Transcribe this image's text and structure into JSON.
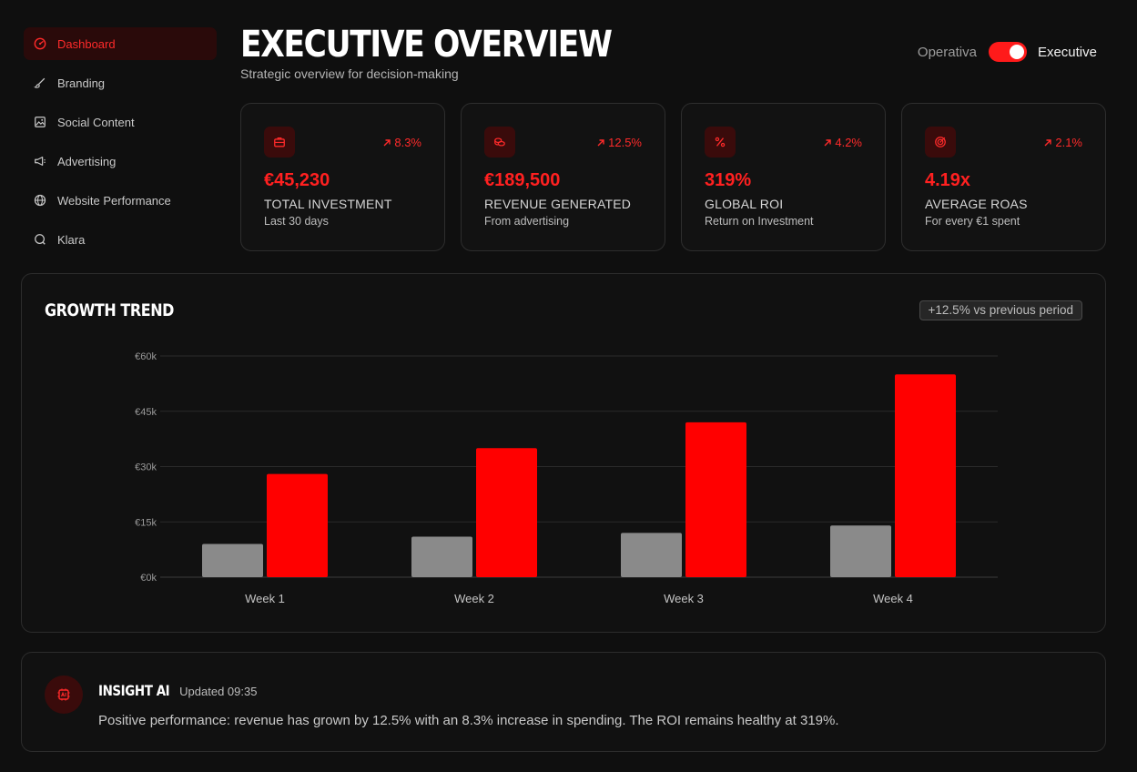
{
  "sidebar": {
    "items": [
      {
        "label": "Dashboard",
        "icon": "dashboard-icon",
        "active": true
      },
      {
        "label": "Branding",
        "icon": "brush-icon"
      },
      {
        "label": "Social Content",
        "icon": "image-icon"
      },
      {
        "label": "Advertising",
        "icon": "megaphone-icon"
      },
      {
        "label": "Website Performance",
        "icon": "globe-icon"
      },
      {
        "label": "Klara",
        "icon": "chat-icon"
      }
    ]
  },
  "header": {
    "title": "EXECUTIVE OVERVIEW",
    "subtitle": "Strategic overview for decision-making",
    "toggle": {
      "left_label": "Operativa",
      "right_label": "Executive",
      "on": true
    }
  },
  "kpis": [
    {
      "icon": "briefcase-icon",
      "change": "8.3%",
      "value": "€45,230",
      "label": "TOTAL INVESTMENT",
      "sub": "Last 30 days"
    },
    {
      "icon": "coins-icon",
      "change": "12.5%",
      "value": "€189,500",
      "label": "REVENUE GENERATED",
      "sub": "From advertising"
    },
    {
      "icon": "percent-icon",
      "change": "4.2%",
      "value": "319%",
      "label": "GLOBAL ROI",
      "sub": "Return on Investment"
    },
    {
      "icon": "target-icon",
      "change": "2.1%",
      "value": "4.19x",
      "label": "AVERAGE ROAS",
      "sub": "For every €1 spent"
    }
  ],
  "growth": {
    "title": "GROWTH TREND",
    "badge": "+12.5% vs previous period"
  },
  "chart_data": {
    "type": "bar",
    "categories": [
      "Week 1",
      "Week 2",
      "Week 3",
      "Week 4"
    ],
    "series": [
      {
        "values": [
          9000,
          11000,
          12000,
          14000
        ],
        "color": "#8a8a8a"
      },
      {
        "values": [
          28000,
          35000,
          42000,
          55000
        ],
        "color": "#ff0000"
      }
    ],
    "yticks": [
      0,
      15000,
      30000,
      45000,
      60000
    ],
    "ytick_labels": [
      "€0k",
      "€15k",
      "€30k",
      "€45k",
      "€60k"
    ],
    "ylim": [
      0,
      60000
    ],
    "grid": true
  },
  "insight": {
    "title": "INSIGHT AI",
    "updated": "Updated 09:35",
    "text": "Positive performance: revenue has grown by 12.5% with an 8.3% increase in spending. The ROI remains healthy at 319%."
  },
  "colors": {
    "accent": "#ff1a1a",
    "background": "#0f0f0f"
  }
}
